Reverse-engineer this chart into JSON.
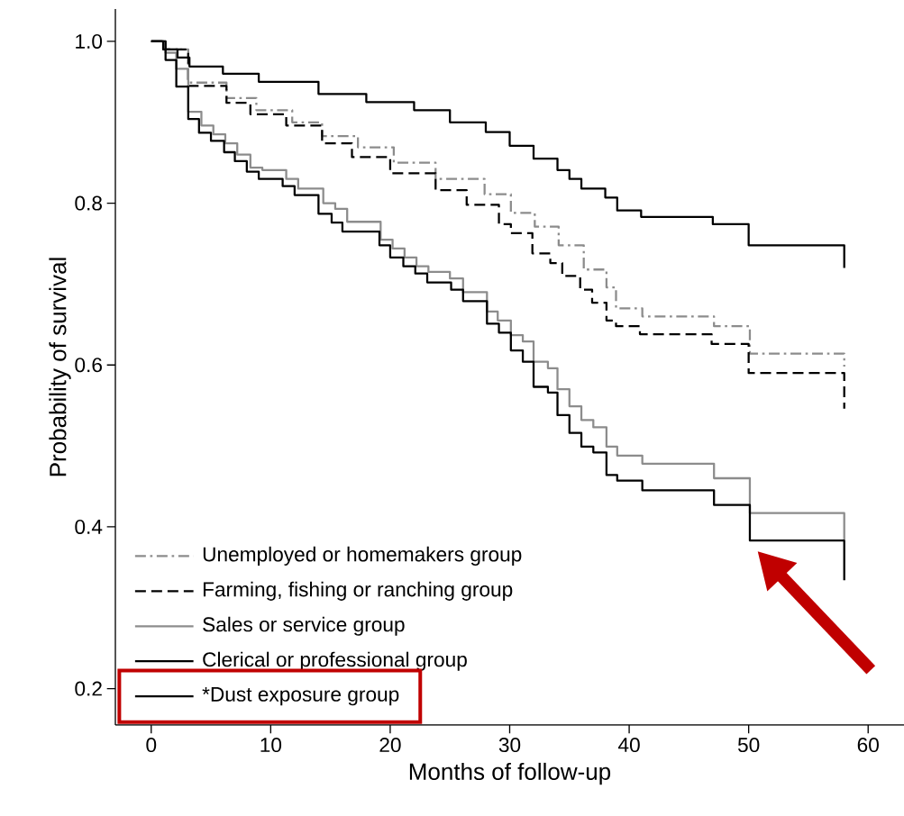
{
  "chart_data": {
    "type": "step",
    "xlabel": "Months of follow-up",
    "ylabel": "Probability of survival",
    "xlim": [
      -3,
      63
    ],
    "ylim": [
      0.155,
      1.04
    ],
    "xticks": [
      0,
      10,
      20,
      30,
      40,
      50,
      60
    ],
    "yticks": [
      0.2,
      0.4,
      0.6,
      0.8,
      {
        "value": 1,
        "label": "1.0"
      }
    ],
    "legend": "bottom left",
    "series": [
      {
        "name": "Unemployed or homemakers group",
        "color": "#8c8c8c",
        "line_style": "dashdot",
        "x": [
          0,
          1.2,
          3.1,
          6.3,
          8.8,
          11.8,
          14.3,
          17.3,
          20.3,
          23.8,
          27.9,
          30.1,
          32.1,
          34.1,
          36.2,
          38.1,
          38.9,
          41.1,
          47.1,
          50.1,
          58
        ],
        "values": [
          1.0,
          0.99,
          0.949,
          0.93,
          0.915,
          0.9,
          0.883,
          0.869,
          0.85,
          0.83,
          0.811,
          0.788,
          0.771,
          0.748,
          0.718,
          0.696,
          0.67,
          0.66,
          0.648,
          0.614,
          0.598
        ]
      },
      {
        "name": "Farming, fishing or ranching group",
        "color": "#000000",
        "line_style": "dashed",
        "x": [
          0,
          1.2,
          3.1,
          6.3,
          8.3,
          11.3,
          14.3,
          16.8,
          20,
          23.8,
          26.4,
          29.1,
          30.1,
          31.9,
          33.4,
          34.4,
          35.9,
          36.9,
          38.1,
          38.9,
          40.9,
          46.9,
          50,
          58
        ],
        "values": [
          1.0,
          0.99,
          0.945,
          0.924,
          0.91,
          0.896,
          0.874,
          0.857,
          0.837,
          0.816,
          0.798,
          0.774,
          0.763,
          0.738,
          0.726,
          0.71,
          0.693,
          0.677,
          0.655,
          0.648,
          0.638,
          0.626,
          0.59,
          0.546
        ]
      },
      {
        "name": "Sales or service group",
        "color": "#8c8c8c",
        "line_style": "solid",
        "x": [
          0,
          1.2,
          2.1,
          3.1,
          4.2,
          5.2,
          6.2,
          7.2,
          8.3,
          9.3,
          11.3,
          12.3,
          14.4,
          15.4,
          16.4,
          19.2,
          20.2,
          21.2,
          22.2,
          23.2,
          25,
          26.1,
          28.1,
          29,
          30.1,
          31.1,
          32,
          33.2,
          34,
          35,
          36,
          37,
          38.1,
          39,
          41.1,
          47.1,
          50.1,
          58
        ],
        "values": [
          1.0,
          0.986,
          0.966,
          0.913,
          0.896,
          0.885,
          0.874,
          0.86,
          0.844,
          0.841,
          0.83,
          0.818,
          0.8,
          0.793,
          0.777,
          0.755,
          0.744,
          0.733,
          0.722,
          0.715,
          0.707,
          0.69,
          0.666,
          0.655,
          0.637,
          0.629,
          0.604,
          0.596,
          0.57,
          0.549,
          0.532,
          0.523,
          0.499,
          0.488,
          0.478,
          0.46,
          0.417,
          0.384
        ]
      },
      {
        "name": "Clerical or professional group",
        "color": "#000000",
        "line_style": "solid",
        "x": [
          0,
          1,
          2.2,
          3.2,
          6,
          9,
          14,
          18,
          22,
          25,
          28,
          30,
          32,
          34,
          35,
          36,
          38,
          39,
          41,
          47,
          50,
          58
        ],
        "values": [
          1.0,
          0.99,
          0.98,
          0.969,
          0.96,
          0.95,
          0.935,
          0.925,
          0.915,
          0.9,
          0.888,
          0.871,
          0.855,
          0.841,
          0.83,
          0.818,
          0.807,
          0.791,
          0.783,
          0.774,
          0.748,
          0.72
        ]
      },
      {
        "name": "*Dust exposure group",
        "color": "#000000",
        "line_style": "solid",
        "x": [
          0,
          1.2,
          2.1,
          3.1,
          4,
          5,
          6.1,
          7,
          8,
          9,
          11,
          12,
          14,
          15.1,
          16,
          19.1,
          20,
          21.1,
          22.1,
          23.1,
          25.1,
          26.1,
          28.1,
          29.1,
          30.1,
          31.1,
          32,
          33.2,
          34,
          35,
          36,
          37,
          38.1,
          39,
          41.1,
          47.1,
          50.1,
          58
        ],
        "values": [
          1.0,
          0.977,
          0.944,
          0.904,
          0.887,
          0.877,
          0.863,
          0.852,
          0.839,
          0.83,
          0.821,
          0.81,
          0.787,
          0.776,
          0.765,
          0.748,
          0.733,
          0.722,
          0.713,
          0.702,
          0.693,
          0.679,
          0.651,
          0.64,
          0.618,
          0.604,
          0.573,
          0.566,
          0.538,
          0.516,
          0.499,
          0.492,
          0.464,
          0.457,
          0.445,
          0.427,
          0.383,
          0.334
        ]
      }
    ]
  }
}
